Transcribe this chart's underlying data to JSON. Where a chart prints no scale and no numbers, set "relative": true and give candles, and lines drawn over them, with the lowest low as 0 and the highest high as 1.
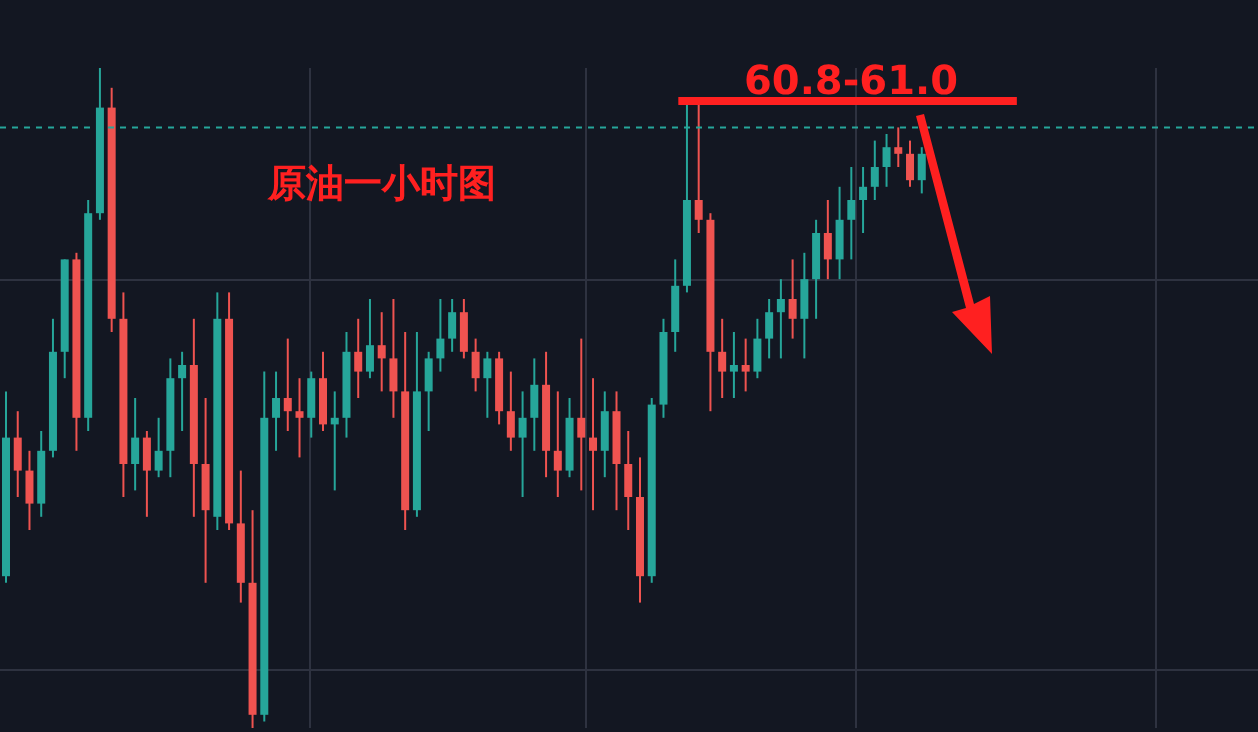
{
  "chart_data": {
    "type": "candlestick",
    "relative": true,
    "grid": true,
    "categories": [
      null,
      null,
      null,
      null,
      null,
      null,
      null,
      null,
      null,
      null,
      null,
      null,
      null,
      null,
      null,
      null,
      null,
      null,
      null,
      null,
      null,
      null,
      null,
      null,
      null,
      null,
      null,
      null,
      null,
      null,
      null,
      null,
      null,
      null,
      null,
      null,
      null,
      null,
      null,
      null,
      null,
      null,
      null,
      null,
      null,
      null,
      null,
      null,
      null,
      null,
      null,
      null,
      null,
      null,
      null,
      null,
      null,
      null,
      null,
      null,
      null,
      null,
      null,
      null,
      null,
      null,
      null,
      null,
      null,
      null,
      null,
      null,
      null,
      null,
      null,
      null,
      null,
      null,
      null
    ],
    "ohlc": [
      [
        0.23,
        0.51,
        0.22,
        0.44
      ],
      [
        0.44,
        0.48,
        0.35,
        0.39
      ],
      [
        0.39,
        0.42,
        0.3,
        0.34
      ],
      [
        0.34,
        0.45,
        0.32,
        0.42
      ],
      [
        0.42,
        0.62,
        0.41,
        0.57
      ],
      [
        0.57,
        0.71,
        0.53,
        0.71
      ],
      [
        0.71,
        0.72,
        0.42,
        0.47
      ],
      [
        0.47,
        0.8,
        0.45,
        0.78
      ],
      [
        0.78,
        1,
        0.77,
        0.94
      ],
      [
        0.94,
        0.97,
        0.6,
        0.62
      ],
      [
        0.62,
        0.66,
        0.35,
        0.4
      ],
      [
        0.4,
        0.5,
        0.36,
        0.44
      ],
      [
        0.44,
        0.45,
        0.32,
        0.39
      ],
      [
        0.39,
        0.47,
        0.38,
        0.42
      ],
      [
        0.42,
        0.56,
        0.38,
        0.53
      ],
      [
        0.53,
        0.57,
        0.45,
        0.55
      ],
      [
        0.55,
        0.62,
        0.32,
        0.4
      ],
      [
        0.4,
        0.5,
        0.22,
        0.33
      ],
      [
        0.32,
        0.66,
        0.3,
        0.62
      ],
      [
        0.62,
        0.66,
        0.3,
        0.31
      ],
      [
        0.31,
        0.39,
        0.19,
        0.22
      ],
      [
        0.22,
        0.33,
        0,
        0.02
      ],
      [
        0.02,
        0.54,
        0.01,
        0.47
      ],
      [
        0.47,
        0.54,
        0.42,
        0.5
      ],
      [
        0.5,
        0.59,
        0.45,
        0.48
      ],
      [
        0.48,
        0.53,
        0.41,
        0.47
      ],
      [
        0.47,
        0.54,
        0.44,
        0.53
      ],
      [
        0.53,
        0.57,
        0.45,
        0.46
      ],
      [
        0.46,
        0.51,
        0.36,
        0.47
      ],
      [
        0.47,
        0.6,
        0.44,
        0.57
      ],
      [
        0.57,
        0.62,
        0.5,
        0.54
      ],
      [
        0.54,
        0.65,
        0.53,
        0.58
      ],
      [
        0.58,
        0.63,
        0.51,
        0.56
      ],
      [
        0.56,
        0.65,
        0.47,
        0.51
      ],
      [
        0.51,
        0.6,
        0.3,
        0.33
      ],
      [
        0.33,
        0.6,
        0.32,
        0.51
      ],
      [
        0.51,
        0.57,
        0.45,
        0.56
      ],
      [
        0.56,
        0.65,
        0.54,
        0.59
      ],
      [
        0.59,
        0.65,
        0.57,
        0.63
      ],
      [
        0.63,
        0.65,
        0.56,
        0.57
      ],
      [
        0.57,
        0.59,
        0.51,
        0.53
      ],
      [
        0.53,
        0.57,
        0.47,
        0.56
      ],
      [
        0.56,
        0.57,
        0.46,
        0.48
      ],
      [
        0.48,
        0.54,
        0.42,
        0.44
      ],
      [
        0.44,
        0.51,
        0.35,
        0.47
      ],
      [
        0.47,
        0.56,
        0.42,
        0.52
      ],
      [
        0.52,
        0.57,
        0.38,
        0.42
      ],
      [
        0.42,
        0.51,
        0.35,
        0.39
      ],
      [
        0.39,
        0.5,
        0.38,
        0.47
      ],
      [
        0.47,
        0.59,
        0.36,
        0.44
      ],
      [
        0.44,
        0.53,
        0.33,
        0.42
      ],
      [
        0.42,
        0.51,
        0.38,
        0.48
      ],
      [
        0.48,
        0.51,
        0.33,
        0.4
      ],
      [
        0.4,
        0.45,
        0.3,
        0.35
      ],
      [
        0.35,
        0.41,
        0.19,
        0.23
      ],
      [
        0.23,
        0.5,
        0.22,
        0.49
      ],
      [
        0.49,
        0.62,
        0.47,
        0.6
      ],
      [
        0.6,
        0.71,
        0.57,
        0.67
      ],
      [
        0.67,
        0.95,
        0.66,
        0.8
      ],
      [
        0.8,
        0.95,
        0.75,
        0.77
      ],
      [
        0.77,
        0.78,
        0.48,
        0.57
      ],
      [
        0.57,
        0.62,
        0.5,
        0.54
      ],
      [
        0.54,
        0.6,
        0.5,
        0.55
      ],
      [
        0.55,
        0.59,
        0.51,
        0.54
      ],
      [
        0.54,
        0.62,
        0.53,
        0.59
      ],
      [
        0.59,
        0.65,
        0.56,
        0.63
      ],
      [
        0.63,
        0.68,
        0.56,
        0.65
      ],
      [
        0.65,
        0.71,
        0.59,
        0.62
      ],
      [
        0.62,
        0.72,
        0.56,
        0.68
      ],
      [
        0.68,
        0.77,
        0.62,
        0.75
      ],
      [
        0.75,
        0.8,
        0.68,
        0.71
      ],
      [
        0.71,
        0.82,
        0.68,
        0.77
      ],
      [
        0.77,
        0.85,
        0.71,
        0.8
      ],
      [
        0.8,
        0.85,
        0.75,
        0.82
      ],
      [
        0.82,
        0.89,
        0.8,
        0.85
      ],
      [
        0.85,
        0.9,
        0.82,
        0.88
      ],
      [
        0.88,
        0.91,
        0.85,
        0.87
      ],
      [
        0.87,
        0.89,
        0.82,
        0.83
      ],
      [
        0.83,
        0.88,
        0.81,
        0.87
      ]
    ],
    "ref_lines": [
      {
        "axis": "y",
        "value": 0.95,
        "color": "#ff2020",
        "line_style": "solid"
      },
      {
        "axis": "y",
        "value": 0.91,
        "color": "#26a69a",
        "line_style": "dashed"
      }
    ],
    "annotations": [
      "60.8-61.0",
      "原油一小时图"
    ]
  }
}
